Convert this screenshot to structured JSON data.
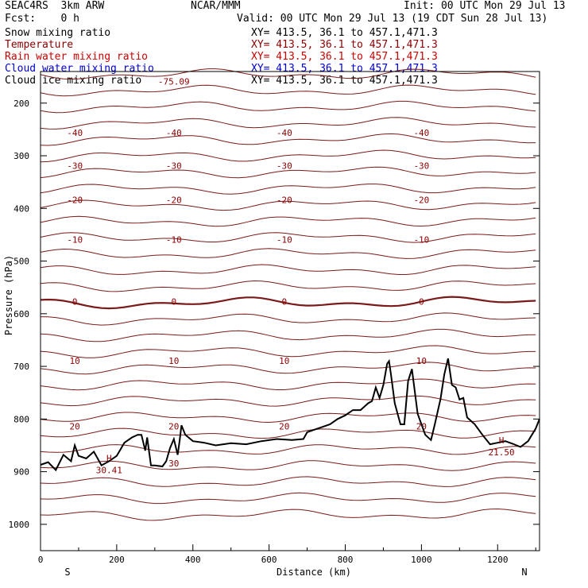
{
  "header": {
    "model": "SEAC4RS  3km ARW",
    "org": "NCAR/MMM",
    "init": "Init: 00 UTC Mon 29 Jul 13",
    "fcst": "Fcst:    0 h",
    "valid": "Valid: 00 UTC Mon 29 Jul 13 (19 CDT Sun 28 Jul 13)"
  },
  "legend": [
    {
      "name": "Snow mixing ratio",
      "xy": "XY= 413.5, 36.1 to 457.1,471.3",
      "color": "#000000"
    },
    {
      "name": "Temperature",
      "xy": "XY= 413.5, 36.1 to 457.1,471.3",
      "color": "#8b0000"
    },
    {
      "name": "Rain water mixing ratio",
      "xy": "XY= 413.5, 36.1 to 457.1,471.3",
      "color": "#cc0000"
    },
    {
      "name": "Cloud water mixing ratio",
      "xy": "XY= 413.5, 36.1 to 457.1,471.3",
      "color": "#0000cc"
    },
    {
      "name": "Cloud ice mixing ratio",
      "xy": "XY= 413.5, 36.1 to 457.1,471.3",
      "color": "#000000"
    }
  ],
  "colors": {
    "isotherm": "#7a1a1a",
    "zero_isotherm": "#6e0f0f",
    "terrain": "#000000",
    "axis": "#000000",
    "label": "#8b0000"
  },
  "chart_data": {
    "type": "line",
    "title": "",
    "xlabel": "Distance (km)",
    "ylabel": "Pressure (hPa)",
    "xlim": [
      0,
      1310
    ],
    "ylim": [
      1050,
      140
    ],
    "xticks": [
      "0",
      "200",
      "400",
      "600",
      "800",
      "1000",
      "1200"
    ],
    "xtick_values": [
      0,
      200,
      400,
      600,
      800,
      1000,
      1200
    ],
    "yticks": [
      "200",
      "300",
      "400",
      "500",
      "600",
      "700",
      "800",
      "900",
      "1000"
    ],
    "ytick_values": [
      200,
      300,
      400,
      500,
      600,
      700,
      800,
      900,
      1000
    ],
    "end_labels": {
      "left": "S",
      "right": "N"
    },
    "series": [
      {
        "name": "Temperature",
        "label_values": [
          30,
          20,
          10,
          0,
          -10,
          -20,
          -30,
          -40,
          -75.09
        ]
      },
      {
        "name": "Terrain",
        "x": [
          0,
          20,
          40,
          60,
          80,
          90,
          100,
          120,
          140,
          160,
          180,
          200,
          220,
          240,
          255,
          265,
          275,
          280,
          290,
          300,
          320,
          330,
          340,
          350,
          360,
          365,
          370,
          380,
          400,
          430,
          460,
          500,
          540,
          580,
          620,
          660,
          690,
          700,
          720,
          740,
          760,
          780,
          800,
          820,
          840,
          860,
          870,
          880,
          890,
          900,
          910,
          915,
          920,
          930,
          945,
          955,
          965,
          975,
          990,
          1010,
          1025,
          1035,
          1050,
          1060,
          1070,
          1080,
          1090,
          1100,
          1110,
          1120,
          1140,
          1160,
          1180,
          1200,
          1220,
          1240,
          1260,
          1280,
          1300,
          1310
        ],
        "y": [
          887,
          882,
          897,
          868,
          880,
          850,
          870,
          875,
          862,
          888,
          880,
          870,
          845,
          835,
          830,
          830,
          860,
          835,
          888,
          888,
          890,
          880,
          855,
          838,
          868,
          842,
          812,
          830,
          842,
          845,
          850,
          846,
          848,
          842,
          838,
          840,
          838,
          825,
          820,
          815,
          810,
          800,
          793,
          783,
          783,
          770,
          766,
          740,
          760,
          735,
          695,
          690,
          715,
          770,
          810,
          810,
          728,
          705,
          790,
          830,
          840,
          810,
          762,
          715,
          685,
          735,
          740,
          763,
          760,
          797,
          810,
          830,
          848,
          845,
          842,
          847,
          853,
          842,
          818,
          800
        ]
      },
      {
        "name": "Terrain extrema",
        "labels": [
          {
            "x": 180,
            "y": 880,
            "h": "H",
            "value": "30.41"
          },
          {
            "x": 1210,
            "y": 846,
            "h": "H",
            "value": "21.50"
          }
        ]
      }
    ]
  }
}
